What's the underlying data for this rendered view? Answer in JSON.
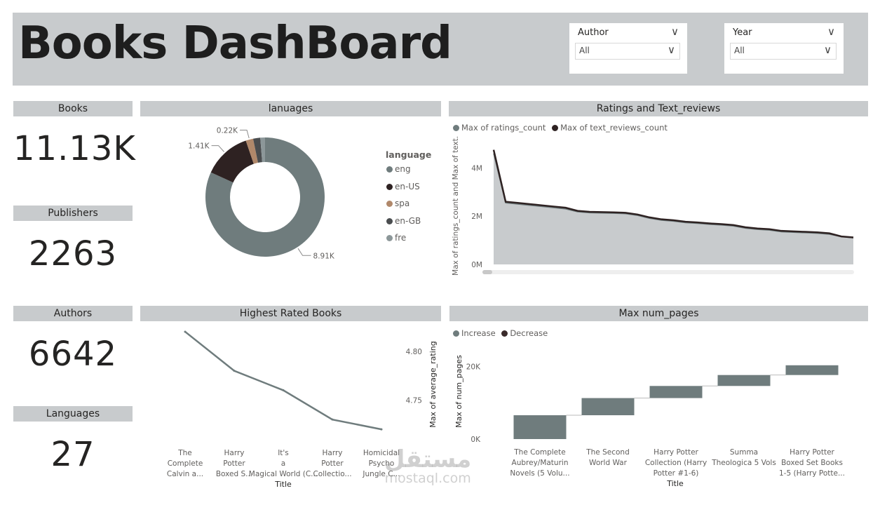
{
  "header": {
    "title": "Books DashBoard"
  },
  "slicers": {
    "author": {
      "label": "Author",
      "value": "All"
    },
    "year": {
      "label": "Year",
      "value": "All"
    }
  },
  "kpis": {
    "books": {
      "label": "Books",
      "value": "11.13K"
    },
    "publishers": {
      "label": "Publishers",
      "value": "2263"
    },
    "authors": {
      "label": "Authors",
      "value": "6642"
    },
    "languages": {
      "label": "Languages",
      "value": "27"
    }
  },
  "watermark": {
    "arabic": "مستقل",
    "latin": "mostaql.com"
  },
  "colors": {
    "grey_bar": "#c8cbcd",
    "slate": "#6f7c7d",
    "dark": "#2e2222",
    "spa": "#b0886a",
    "engb": "#4a4d4f",
    "fre": "#8c9799",
    "area_fill": "#c8cbcd"
  },
  "chart_data": [
    {
      "id": "languages",
      "type": "pie",
      "title": "lanuages",
      "legend_title": "language",
      "legend_position": "right",
      "labels": [
        "eng",
        "en-US",
        "spa",
        "en-GB",
        "fre"
      ],
      "values": [
        8.91,
        1.41,
        0.22,
        0.21,
        0.14
      ],
      "data_labels": [
        {
          "label": "eng",
          "text": "8.91K"
        },
        {
          "label": "en-US",
          "text": "1.41K"
        },
        {
          "label": "spa",
          "text": "0.22K"
        }
      ]
    },
    {
      "id": "ratings_reviews",
      "type": "area",
      "title": "Ratings and Text_reviews",
      "legend_position": "top-left",
      "ylabel": "Max of ratings_count and Max of text...",
      "ylim": [
        0,
        5000000
      ],
      "yticks": [
        {
          "v": 0,
          "label": "0M"
        },
        {
          "v": 2000000,
          "label": "2M"
        },
        {
          "v": 4000000,
          "label": "4M"
        }
      ],
      "series": [
        {
          "name": "Max of ratings_count",
          "values": [
            4600000,
            2550000,
            2500000,
            2450000,
            2400000,
            2350000,
            2300000,
            2180000,
            2140000,
            2130000,
            2120000,
            2100000,
            2030000,
            1910000,
            1830000,
            1790000,
            1730000,
            1700000,
            1660000,
            1630000,
            1590000,
            1500000,
            1450000,
            1420000,
            1350000,
            1330000,
            1310000,
            1290000,
            1250000,
            1150000,
            1100000
          ]
        },
        {
          "name": "Max of text_reviews_count",
          "values": [
            4750000,
            2600000,
            2550000,
            2500000,
            2450000,
            2400000,
            2350000,
            2220000,
            2180000,
            2170000,
            2160000,
            2140000,
            2070000,
            1950000,
            1870000,
            1830000,
            1770000,
            1740000,
            1700000,
            1670000,
            1630000,
            1540000,
            1490000,
            1460000,
            1390000,
            1370000,
            1350000,
            1330000,
            1290000,
            1160000,
            1120000
          ]
        }
      ]
    },
    {
      "id": "highest_rated",
      "type": "line",
      "title": "Highest Rated Books",
      "xlabel": "Title",
      "ylabel": "Max of average_rating",
      "categories": [
        "The Complete Calvin a...",
        "Harry Potter Boxed S...",
        "It's a Magical World (C...",
        "Harry Potter Collectio...",
        "Homicidal Psycho Jungle C..."
      ],
      "values": [
        4.82,
        4.78,
        4.76,
        4.73,
        4.72
      ],
      "ylim": [
        4.71,
        4.825
      ],
      "yticks": [
        {
          "v": 4.75,
          "label": "4.75"
        },
        {
          "v": 4.8,
          "label": "4.80"
        }
      ]
    },
    {
      "id": "max_num_pages",
      "type": "bar",
      "subtype": "waterfall",
      "title": "Max num_pages",
      "legend_position": "top-left",
      "legend": [
        "Increase",
        "Decrease"
      ],
      "xlabel": "Title",
      "ylabel": "Max of num_pages",
      "categories": [
        "The Complete Aubrey/Maturin Novels (5 Volu...",
        "The Second World War",
        "Harry Potter Collection (Harry Potter #1-6)",
        "Summa Theologica 5 Vols",
        "Harry Potter Boxed Set Books 1-5 (Harry Potte..."
      ],
      "values": [
        6576,
        4736,
        3342,
        3020,
        2690
      ],
      "ylim": [
        0,
        24000
      ],
      "yticks": [
        {
          "v": 0,
          "label": "0K"
        },
        {
          "v": 20000,
          "label": "20K"
        }
      ]
    }
  ]
}
